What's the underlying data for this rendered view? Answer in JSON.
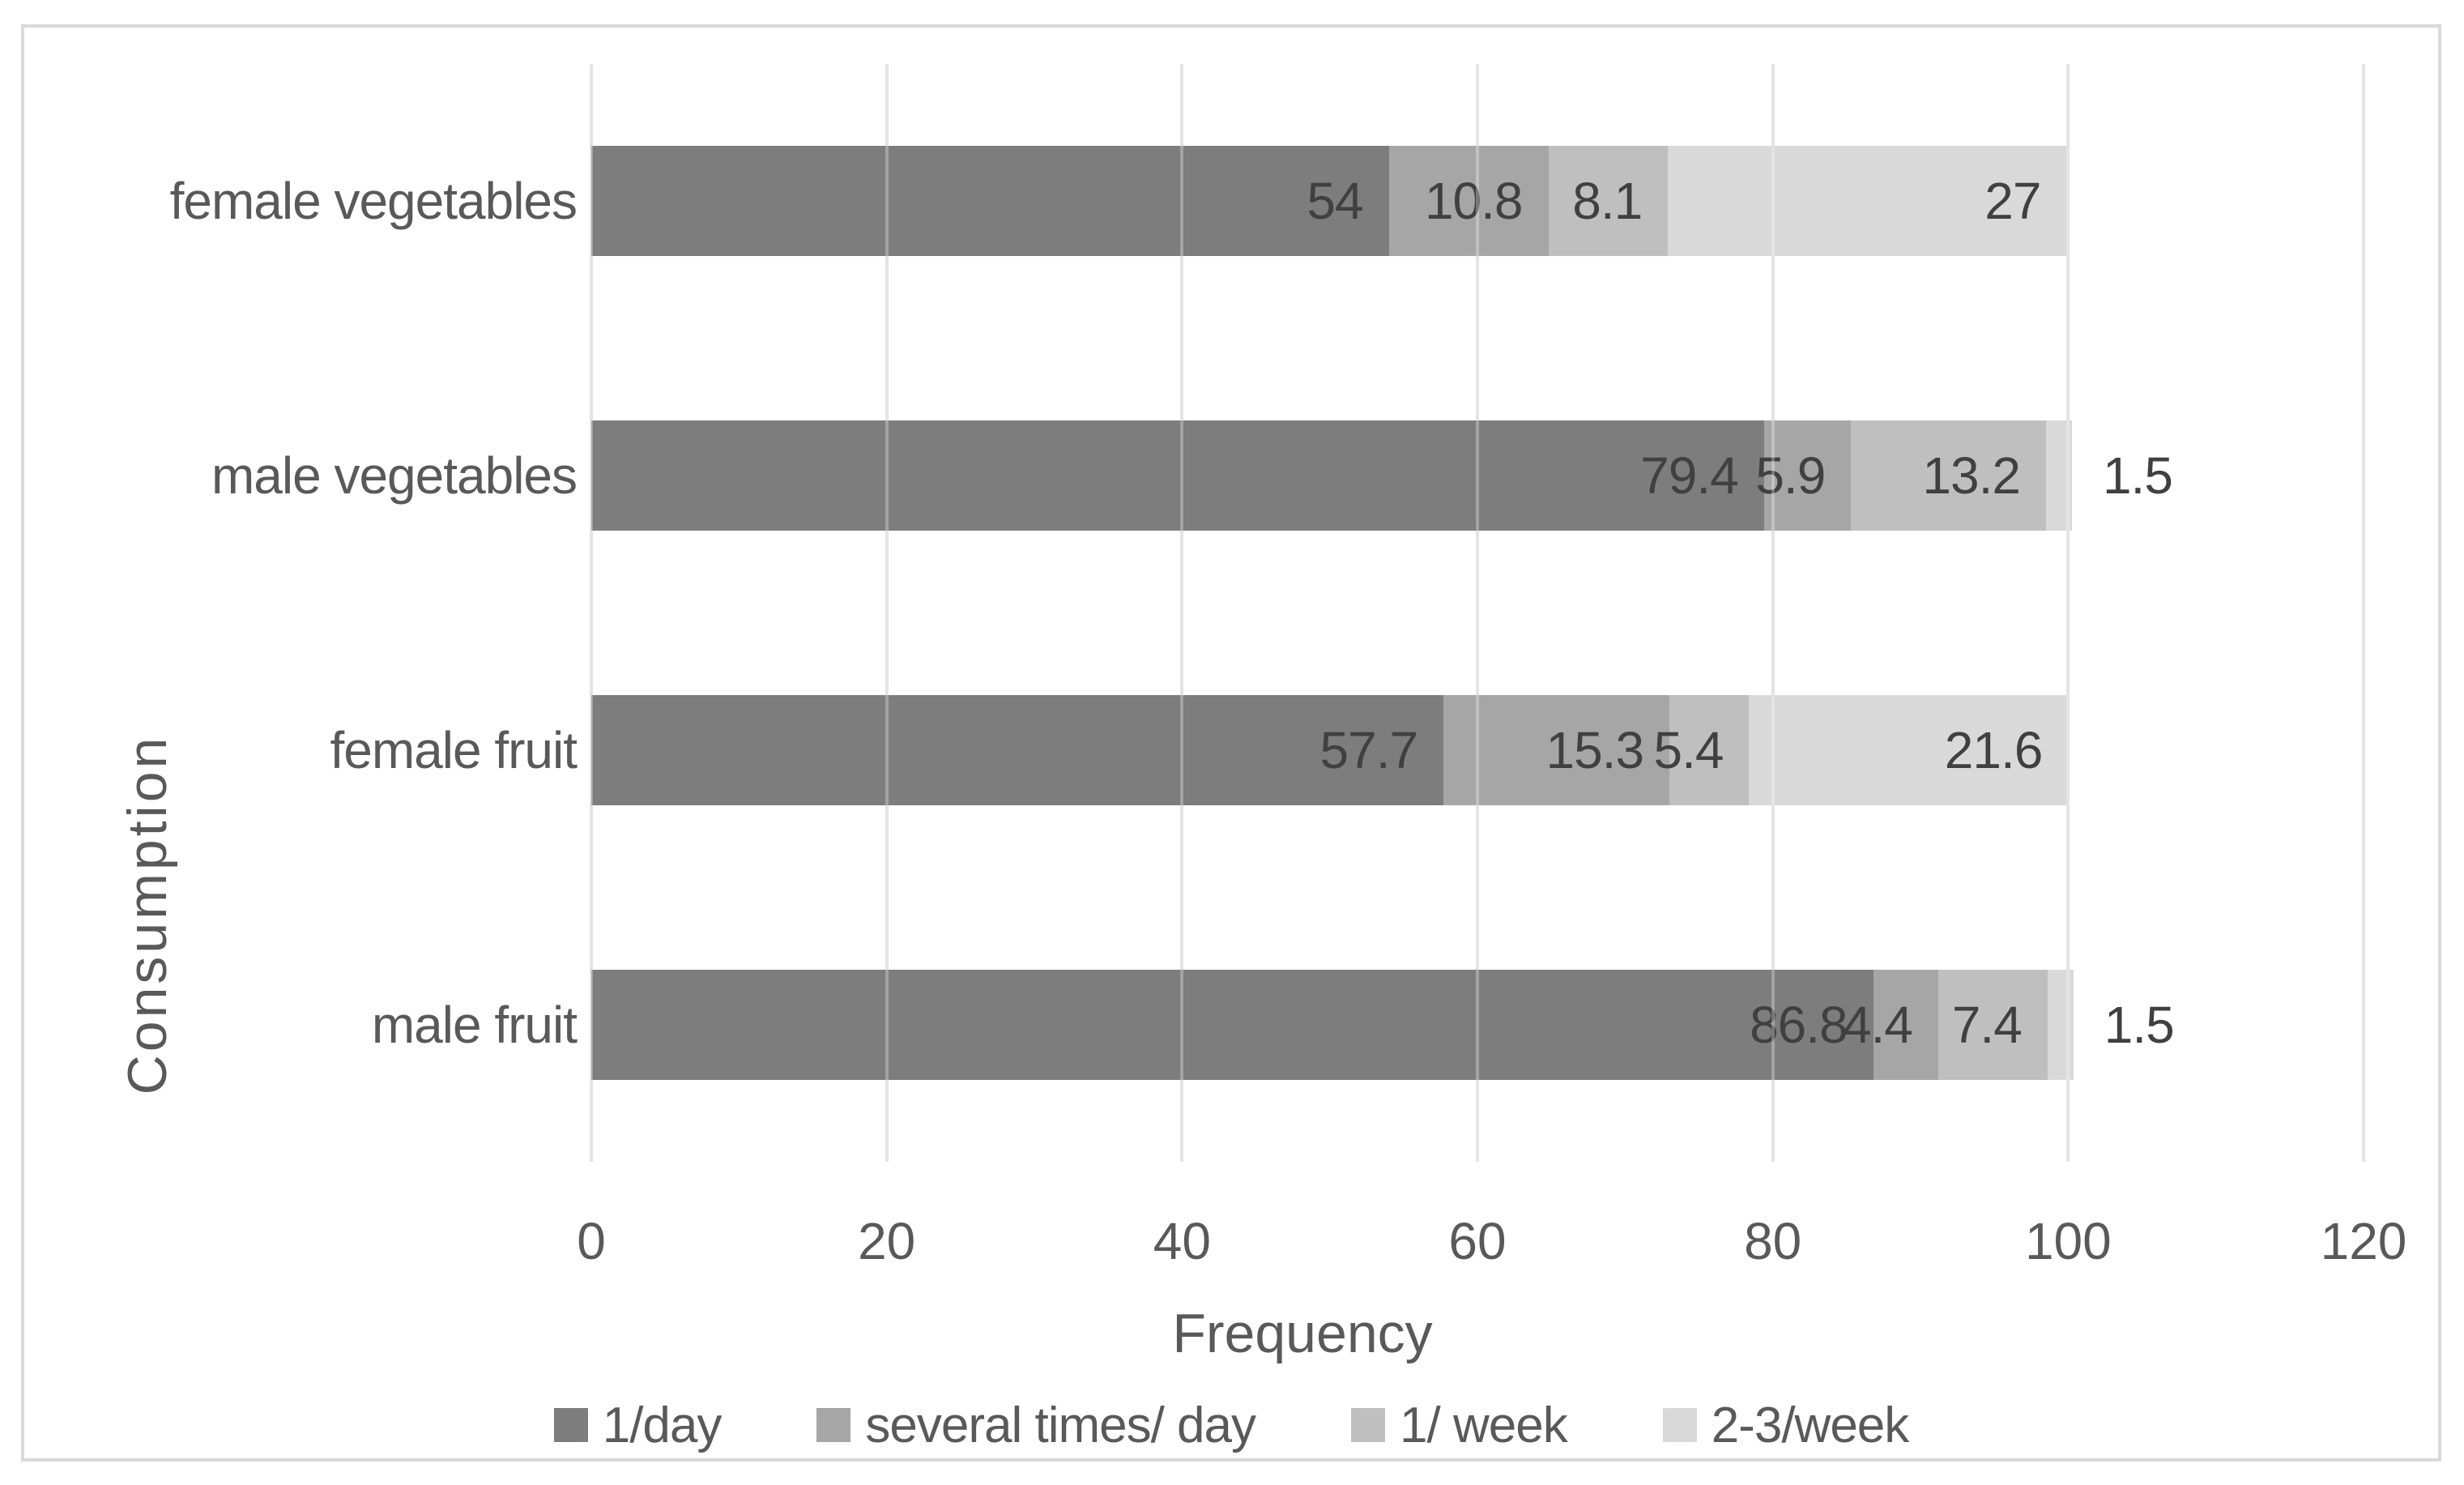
{
  "chart_data": {
    "type": "bar",
    "variant": "horizontal-stacked",
    "title": "",
    "xlabel": "Frequency",
    "ylabel": "Consumption",
    "xlim": [
      0,
      120
    ],
    "xticks": [
      0,
      20,
      40,
      60,
      80,
      100,
      120
    ],
    "grid": true,
    "legend_position": "bottom",
    "categories": [
      "female vegetables",
      "male vegetables",
      "female fruit",
      "male fruit"
    ],
    "series": [
      {
        "name": "1/day",
        "color": "#7d7d7d",
        "values": [
          54,
          79.4,
          57.7,
          86.8
        ]
      },
      {
        "name": "several times/ day",
        "color": "#a6a6a6",
        "values": [
          10.8,
          5.9,
          15.3,
          4.4
        ]
      },
      {
        "name": "1/ week",
        "color": "#bfbfbf",
        "values": [
          8.1,
          13.2,
          5.4,
          7.4
        ]
      },
      {
        "name": "2-3/week",
        "color": "#d9d9d9",
        "values": [
          27,
          1.5,
          21.6,
          1.5
        ]
      }
    ],
    "colors": {
      "axis_text": "#595959",
      "data_label": "#404040",
      "gridline": "#d9d9d9",
      "chart_border": "#d9d9d9",
      "background": "#ffffff"
    }
  }
}
